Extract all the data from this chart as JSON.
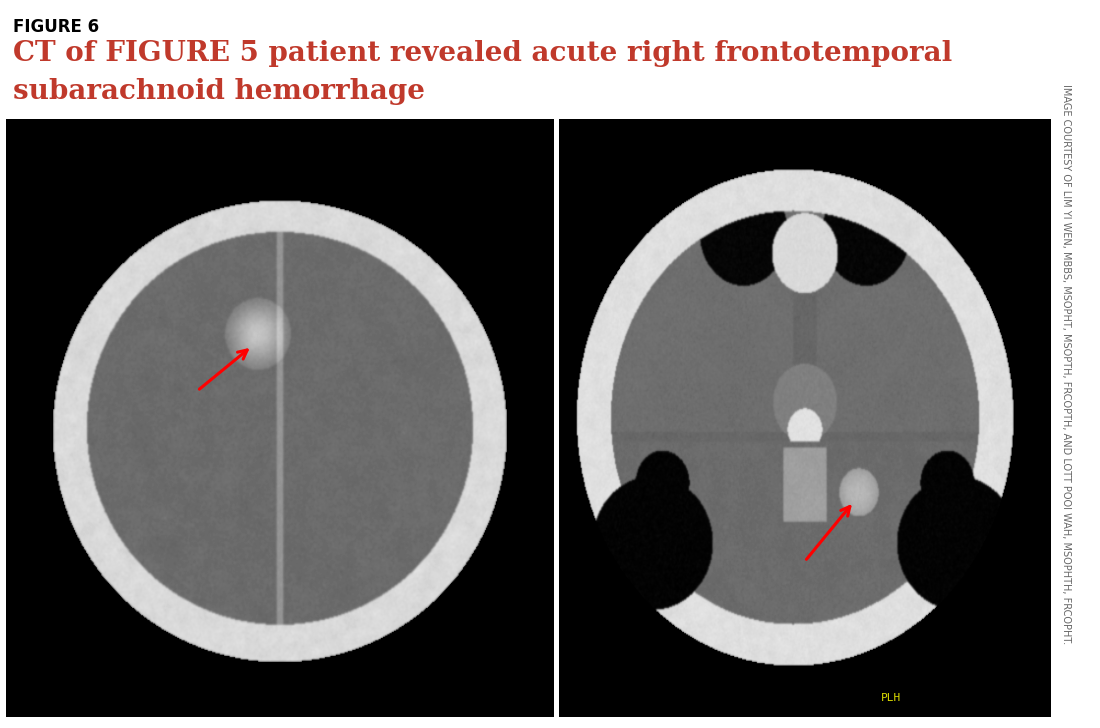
{
  "figure_label": "FIGURE 6",
  "title_line1": "CT of FIGURE 5 patient revealed acute right frontotemporal",
  "title_line2": "subarachnoid hemorrhage",
  "figure_label_color": "#000000",
  "title_color": "#c0392b",
  "background_color": "#ffffff",
  "credit_line1": "IMAGE COURTESY OF LIM YI WEN, MBBS, MSOPHT, MSOPTH, FRCOPTH,",
  "credit_line2": "AND LOTT POOI WAH, MSOPHTH, FRCOPHT.",
  "credit_color": "#666666",
  "figure_label_fontsize": 12,
  "title_fontsize": 20,
  "credit_fontsize": 7
}
